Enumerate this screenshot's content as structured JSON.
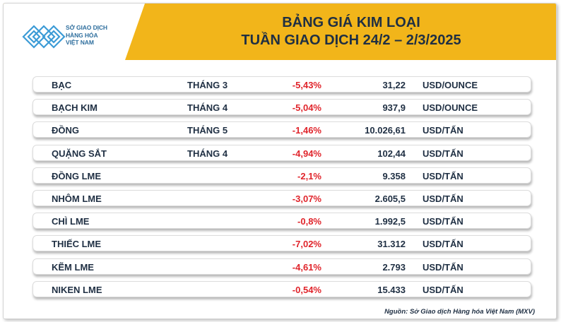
{
  "header": {
    "logo_lines": [
      "SỞ GIAO DỊCH",
      "HÀNG HÓA",
      "VIỆT NAM"
    ],
    "title_line1": "BẢNG GIÁ KIM LOẠI",
    "title_line2": "TUẦN GIAO DỊCH 24/2 – 2/3/2025"
  },
  "rows": [
    {
      "name": "BẠC",
      "month": "THÁNG 3",
      "change": "-5,43%",
      "price": "31,22",
      "unit": "USD/OUNCE"
    },
    {
      "name": "BẠCH KIM",
      "month": "THÁNG 4",
      "change": "-5,04%",
      "price": "937,9",
      "unit": "USD/OUNCE"
    },
    {
      "name": "ĐỒNG",
      "month": "THÁNG 5",
      "change": "-1,46%",
      "price": "10.026,61",
      "unit": "USD/TẤN"
    },
    {
      "name": "QUẶNG SẮT",
      "month": "THÁNG 4",
      "change": "-4,94%",
      "price": "102,44",
      "unit": "USD/TẤN"
    },
    {
      "name": "ĐỒNG LME",
      "month": "",
      "change": "-2,1%",
      "price": "9.358",
      "unit": "USD/TẤN"
    },
    {
      "name": "NHÔM LME",
      "month": "",
      "change": "-3,07%",
      "price": "2.605,5",
      "unit": "USD/TẤN"
    },
    {
      "name": "CHÌ LME",
      "month": "",
      "change": "-0,8%",
      "price": "1.992,5",
      "unit": "USD/TẤN"
    },
    {
      "name": "THIẾC LME",
      "month": "",
      "change": "-7,02%",
      "price": "31.312",
      "unit": "USD/TẤN"
    },
    {
      "name": "KẼM LME",
      "month": "",
      "change": "-4,61%",
      "price": "2.793",
      "unit": "USD/TẤN"
    },
    {
      "name": "NIKEN LME",
      "month": "",
      "change": "-0,54%",
      "price": "15.433",
      "unit": "USD/TẤN"
    }
  ],
  "source": "Nguồn: Sở Giao dịch Hàng hóa Việt Nam (MXV)",
  "colors": {
    "header_bg": "#f2b51a",
    "title_text": "#1f2f43",
    "negative_change": "#e0242b",
    "logo_blue": "#2f6f9e"
  },
  "icons": [
    "mxv-logo-icon"
  ]
}
